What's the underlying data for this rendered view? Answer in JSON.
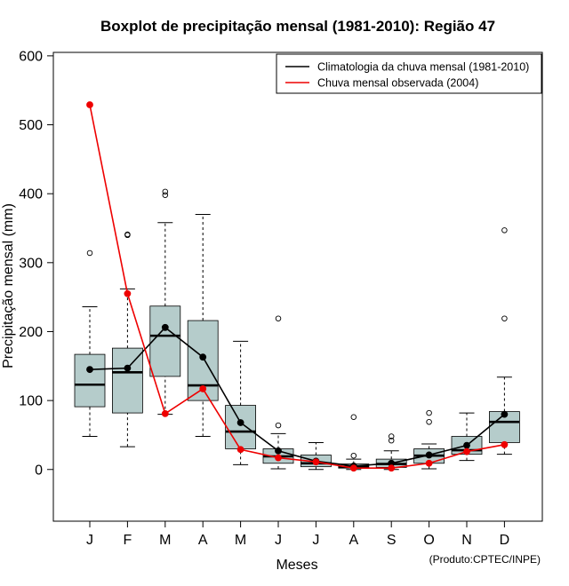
{
  "chart_data": {
    "type": "boxplot",
    "title": "Boxplot de precipitação mensal (1981-2010): Região 47",
    "xlabel": "Meses",
    "ylabel": "Precipitação mensal (mm)",
    "ylim": [
      -75,
      605
    ],
    "yticks": [
      0,
      100,
      200,
      300,
      400,
      500,
      600
    ],
    "categories": [
      "J",
      "F",
      "M",
      "A",
      "M",
      "J",
      "J",
      "A",
      "S",
      "O",
      "N",
      "D"
    ],
    "boxes": [
      {
        "whisker_low": 48,
        "q1": 91,
        "median": 123,
        "q3": 167,
        "whisker_high": 236,
        "outliers": [
          314
        ]
      },
      {
        "whisker_low": 33,
        "q1": 82,
        "median": 141,
        "q3": 176,
        "whisker_high": 262,
        "outliers": [
          340,
          341
        ]
      },
      {
        "whisker_low": 80,
        "q1": 135,
        "median": 194,
        "q3": 237,
        "whisker_high": 358,
        "outliers": [
          398,
          403
        ]
      },
      {
        "whisker_low": 48,
        "q1": 100,
        "median": 122,
        "q3": 216,
        "whisker_high": 370,
        "outliers": []
      },
      {
        "whisker_low": 7,
        "q1": 30,
        "median": 55,
        "q3": 93,
        "whisker_high": 186,
        "outliers": []
      },
      {
        "whisker_low": 1,
        "q1": 9,
        "median": 19,
        "q3": 30,
        "whisker_high": 52,
        "outliers": [
          64,
          219
        ]
      },
      {
        "whisker_low": 0,
        "q1": 4,
        "median": 9,
        "q3": 21,
        "whisker_high": 39,
        "outliers": []
      },
      {
        "whisker_low": 0,
        "q1": 2,
        "median": 4,
        "q3": 8,
        "whisker_high": 15,
        "outliers": [
          20,
          76
        ]
      },
      {
        "whisker_low": 0,
        "q1": 3,
        "median": 8,
        "q3": 15,
        "whisker_high": 27,
        "outliers": [
          42,
          48
        ]
      },
      {
        "whisker_low": 1,
        "q1": 9,
        "median": 20,
        "q3": 30,
        "whisker_high": 37,
        "outliers": [
          69,
          82
        ]
      },
      {
        "whisker_low": 13,
        "q1": 22,
        "median": 28,
        "q3": 48,
        "whisker_high": 82,
        "outliers": []
      },
      {
        "whisker_low": 22,
        "q1": 39,
        "median": 69,
        "q3": 84,
        "whisker_high": 134,
        "outliers": [
          219,
          347
        ]
      }
    ],
    "series": [
      {
        "name": "Climatologia da chuva mensal (1981-2010)",
        "color": "#000000",
        "values": [
          145,
          147,
          206,
          163,
          68,
          27,
          12,
          5,
          9,
          21,
          35,
          80
        ]
      },
      {
        "name": "Chuva mensal observada (2004)",
        "color": "#ee0000",
        "values": [
          529,
          255,
          81,
          117,
          29,
          17,
          11,
          2,
          2,
          9,
          26,
          36
        ]
      }
    ],
    "box_fill": "#b5cccb",
    "legend_position": "top-right",
    "credit": "(Produto:CPTEC/INPE)"
  }
}
